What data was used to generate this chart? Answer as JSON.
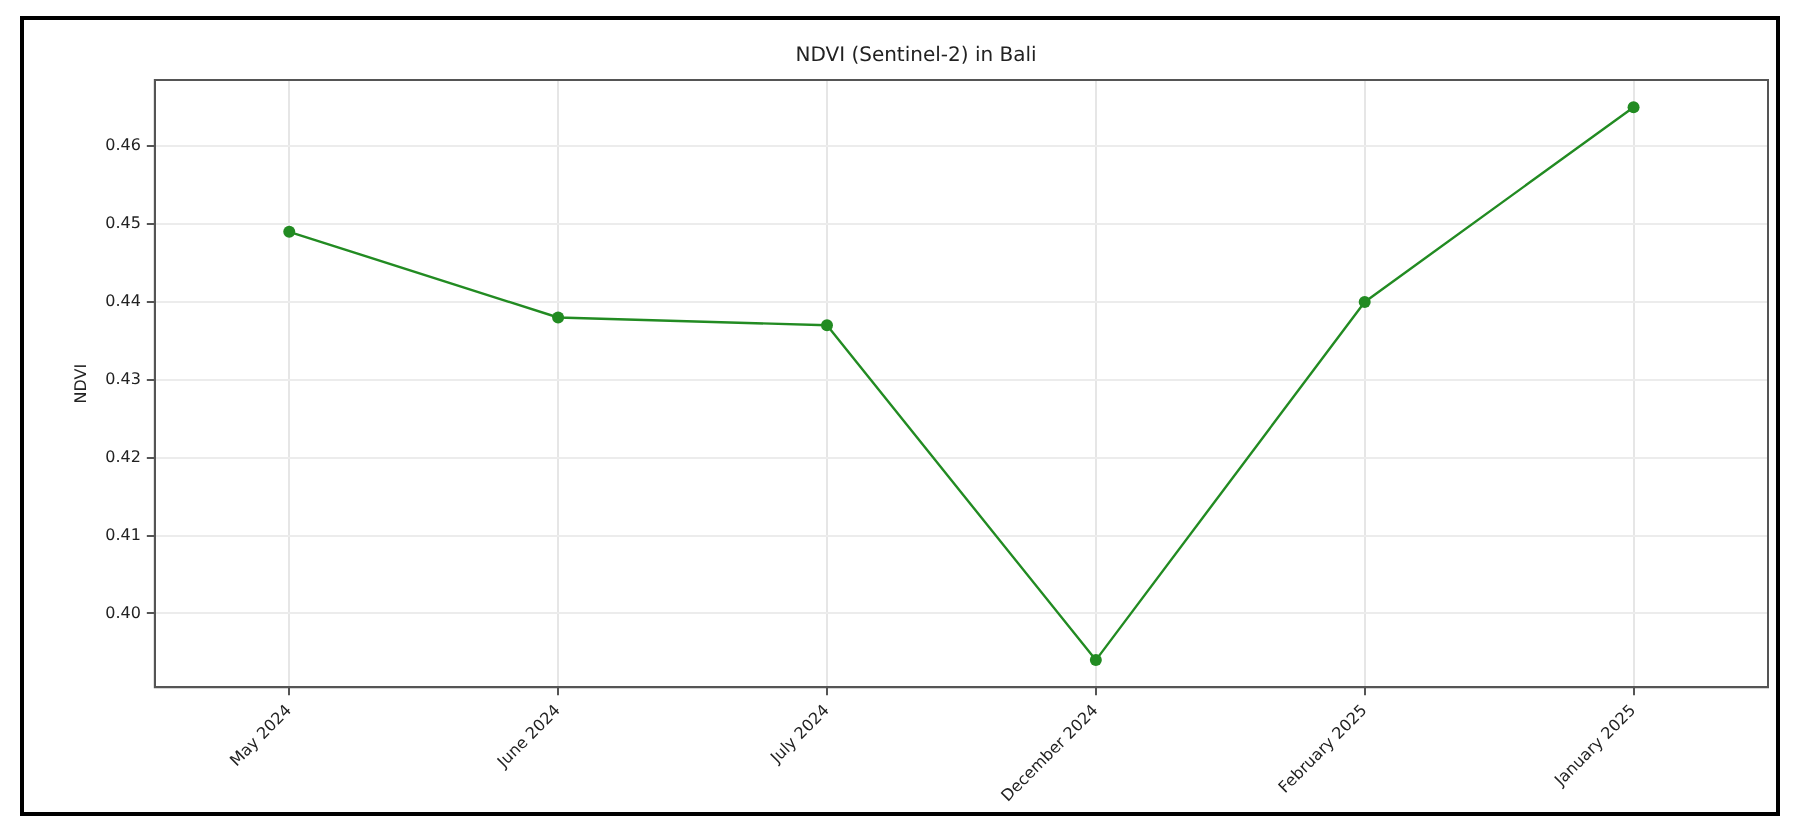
{
  "chart_data": {
    "type": "line",
    "title": "NDVI (Sentinel-2) in Bali",
    "ylabel": "NDVI",
    "categories": [
      "May 2024",
      "June 2024",
      "July 2024",
      "December 2024",
      "February 2025",
      "January 2025"
    ],
    "series": [
      {
        "color": "#228b22",
        "values": [
          0.449,
          0.438,
          0.437,
          0.394,
          0.44,
          0.465
        ]
      }
    ],
    "ylim": [
      0.3905,
      0.4685
    ],
    "yticks": [
      {
        "value": 0.4,
        "label": "0.40"
      },
      {
        "value": 0.41,
        "label": "0.41"
      },
      {
        "value": 0.42,
        "label": "0.42"
      },
      {
        "value": 0.43,
        "label": "0.43"
      },
      {
        "value": 0.44,
        "label": "0.44"
      },
      {
        "value": 0.45,
        "label": "0.45"
      },
      {
        "value": 0.46,
        "label": "0.46"
      }
    ],
    "grid": true,
    "legend": false,
    "marker": "circle",
    "line_style": "solid"
  }
}
